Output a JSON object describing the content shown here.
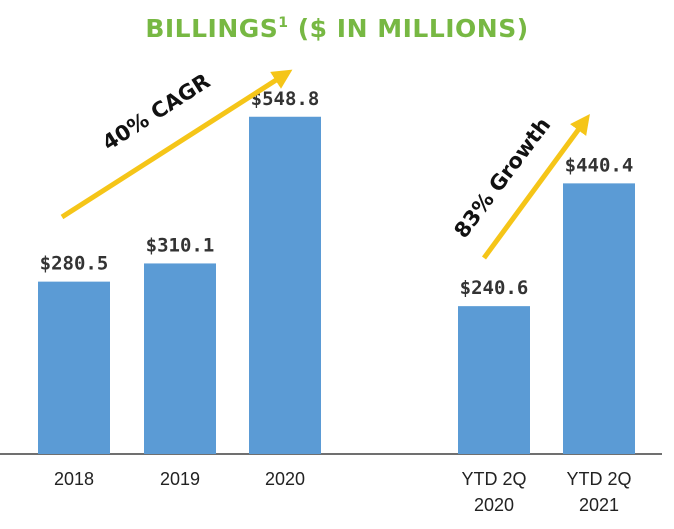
{
  "title": {
    "main": "BILLINGS",
    "superscript": "1",
    "suffix": " ($ IN MILLIONS)",
    "color": "#77b843"
  },
  "chart_data": {
    "type": "bar",
    "categories": [
      "2018",
      "2019",
      "2020",
      "YTD 2Q\n2020",
      "YTD 2Q\n2021"
    ],
    "values": [
      280.5,
      310.1,
      548.8,
      240.6,
      440.4
    ],
    "data_labels": [
      "$280.5",
      "$310.1",
      "$548.8",
      "$240.6",
      "$440.4"
    ],
    "ylim": [
      0,
      620
    ],
    "grid": false,
    "bar_color": "#5b9bd5",
    "annotations": [
      {
        "text": "40% CAGR",
        "color": "#f5c518"
      },
      {
        "text": "83% Growth",
        "color": "#f5c518"
      }
    ]
  }
}
